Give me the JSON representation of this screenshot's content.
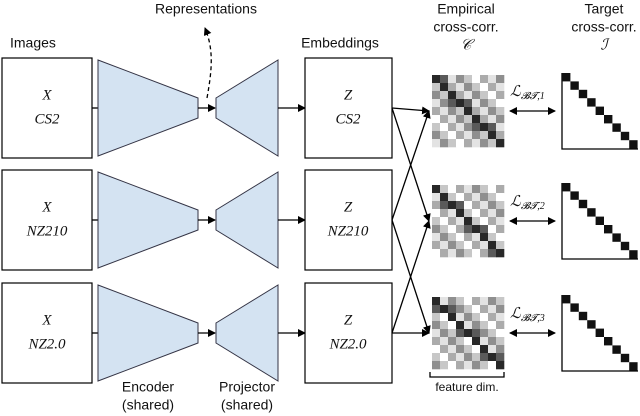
{
  "header": {
    "images": "Images",
    "representations": "Representations",
    "embeddings": "Embeddings",
    "empirical": {
      "line1": "Empirical",
      "line2": "cross-corr.",
      "symbol": "𝒞"
    },
    "target": {
      "line1": "Target",
      "line2": "cross-corr.",
      "symbol": "ℐ"
    }
  },
  "images": [
    {
      "symbol": "X",
      "label": "CS2"
    },
    {
      "symbol": "X",
      "label": "NZ210"
    },
    {
      "symbol": "X",
      "label": "NZ2.0"
    }
  ],
  "embeddings": [
    {
      "symbol": "Z",
      "label": "CS2"
    },
    {
      "symbol": "Z",
      "label": "NZ210"
    },
    {
      "symbol": "Z",
      "label": "NZ2.0"
    }
  ],
  "losses": [
    {
      "symbol": "ℒ",
      "subscript": "𝓑𝓣,1"
    },
    {
      "symbol": "ℒ",
      "subscript": "𝓑𝓣,2"
    },
    {
      "symbol": "ℒ",
      "subscript": "𝓑𝓣,3"
    }
  ],
  "footer": {
    "encoder": {
      "line1": "Encoder",
      "line2": "(shared)"
    },
    "projector": {
      "line1": "Projector",
      "line2": "(shared)"
    },
    "feature_dim": "feature dim."
  }
}
